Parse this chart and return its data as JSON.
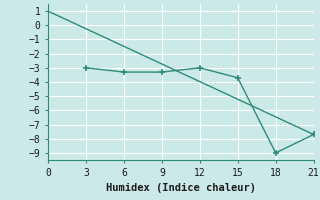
{
  "line1_x": [
    0,
    21
  ],
  "line1_y": [
    1,
    -7.7
  ],
  "line2_x": [
    3,
    6,
    9,
    12,
    15,
    18,
    21
  ],
  "line2_y": [
    -3.0,
    -3.3,
    -3.3,
    -3.0,
    -3.7,
    -9.0,
    -7.7
  ],
  "color": "#2e8b7a",
  "xlabel": "Humidex (Indice chaleur)",
  "xlim": [
    0,
    21
  ],
  "ylim": [
    -9.5,
    1.5
  ],
  "xticks": [
    0,
    3,
    6,
    9,
    12,
    15,
    18,
    21
  ],
  "yticks": [
    1,
    0,
    -1,
    -2,
    -3,
    -4,
    -5,
    -6,
    -7,
    -8,
    -9
  ],
  "bg_color": "#cce9e9",
  "grid_color": "#ffffff",
  "spine_color": "#2e8b7a",
  "font_family": "monospace",
  "tick_fontsize": 7,
  "xlabel_fontsize": 7.5
}
